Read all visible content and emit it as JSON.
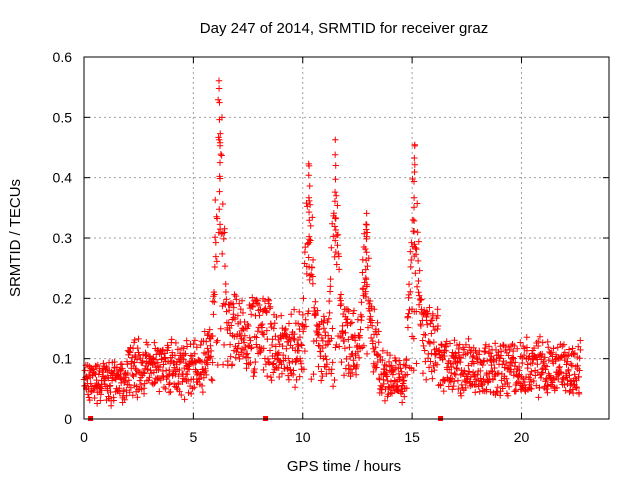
{
  "chart_data": {
    "type": "scatter",
    "title": "Day 247 of 2014, SRMTID for receiver graz",
    "xlabel": "GPS time / hours",
    "ylabel": "SRMTID / TECUs",
    "xlim": [
      0,
      24
    ],
    "ylim": [
      0,
      0.6
    ],
    "xticks": [
      0,
      5,
      10,
      15,
      20
    ],
    "xtick_labels": [
      "0",
      "5",
      "10",
      "15",
      "20"
    ],
    "yticks": [
      0,
      0.1,
      0.2,
      0.3,
      0.4,
      0.5,
      0.6
    ],
    "ytick_labels": [
      "0",
      "0.1",
      "0.2",
      "0.3",
      "0.4",
      "0.5",
      "0.6"
    ],
    "grid": true,
    "marker": "+",
    "color": "#ff0000",
    "data_range_hours": [
      0,
      22.7
    ],
    "baseline_segments": [
      {
        "hours": [
          0.0,
          2.0
        ],
        "level": 0.062
      },
      {
        "hours": [
          2.0,
          5.5
        ],
        "level": 0.085
      },
      {
        "hours": [
          5.5,
          6.0
        ],
        "level": 0.1
      },
      {
        "hours": [
          6.0,
          8.5
        ],
        "level": 0.14
      },
      {
        "hours": [
          8.5,
          13.5
        ],
        "level": 0.12
      },
      {
        "hours": [
          13.5,
          14.8
        ],
        "level": 0.07
      },
      {
        "hours": [
          14.8,
          16.2
        ],
        "level": 0.13
      },
      {
        "hours": [
          16.2,
          22.7
        ],
        "level": 0.085
      }
    ],
    "peaks": [
      {
        "x": 6.2,
        "y": 0.55
      },
      {
        "x": 10.3,
        "y": 0.42
      },
      {
        "x": 11.5,
        "y": 0.46
      },
      {
        "x": 12.9,
        "y": 0.34
      },
      {
        "x": 15.1,
        "y": 0.45
      }
    ],
    "axis_markers_x": [
      0.3,
      8.3,
      16.3
    ]
  }
}
